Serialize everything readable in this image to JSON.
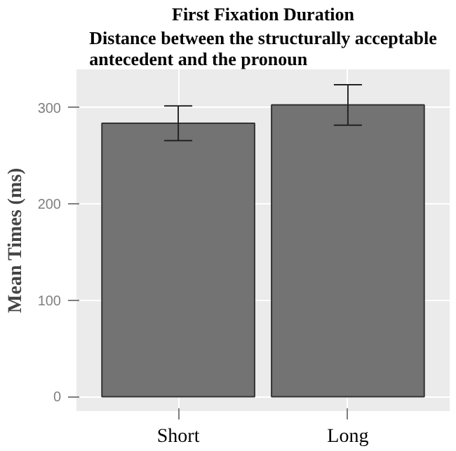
{
  "chart_data": {
    "type": "bar",
    "title": "First Fixation Duration",
    "subtitle": "Distance between the structurally acceptable\nantecedent and the pronoun",
    "ylabel": "Mean Times (ms)",
    "categories": [
      "Short",
      "Long"
    ],
    "values": [
      284,
      303
    ],
    "errors": [
      [
        266,
        302
      ],
      [
        282,
        324
      ]
    ],
    "color": "#737373",
    "ylim": [
      -15,
      340
    ],
    "yticks": [
      0,
      100,
      200,
      300
    ],
    "grid": true
  }
}
